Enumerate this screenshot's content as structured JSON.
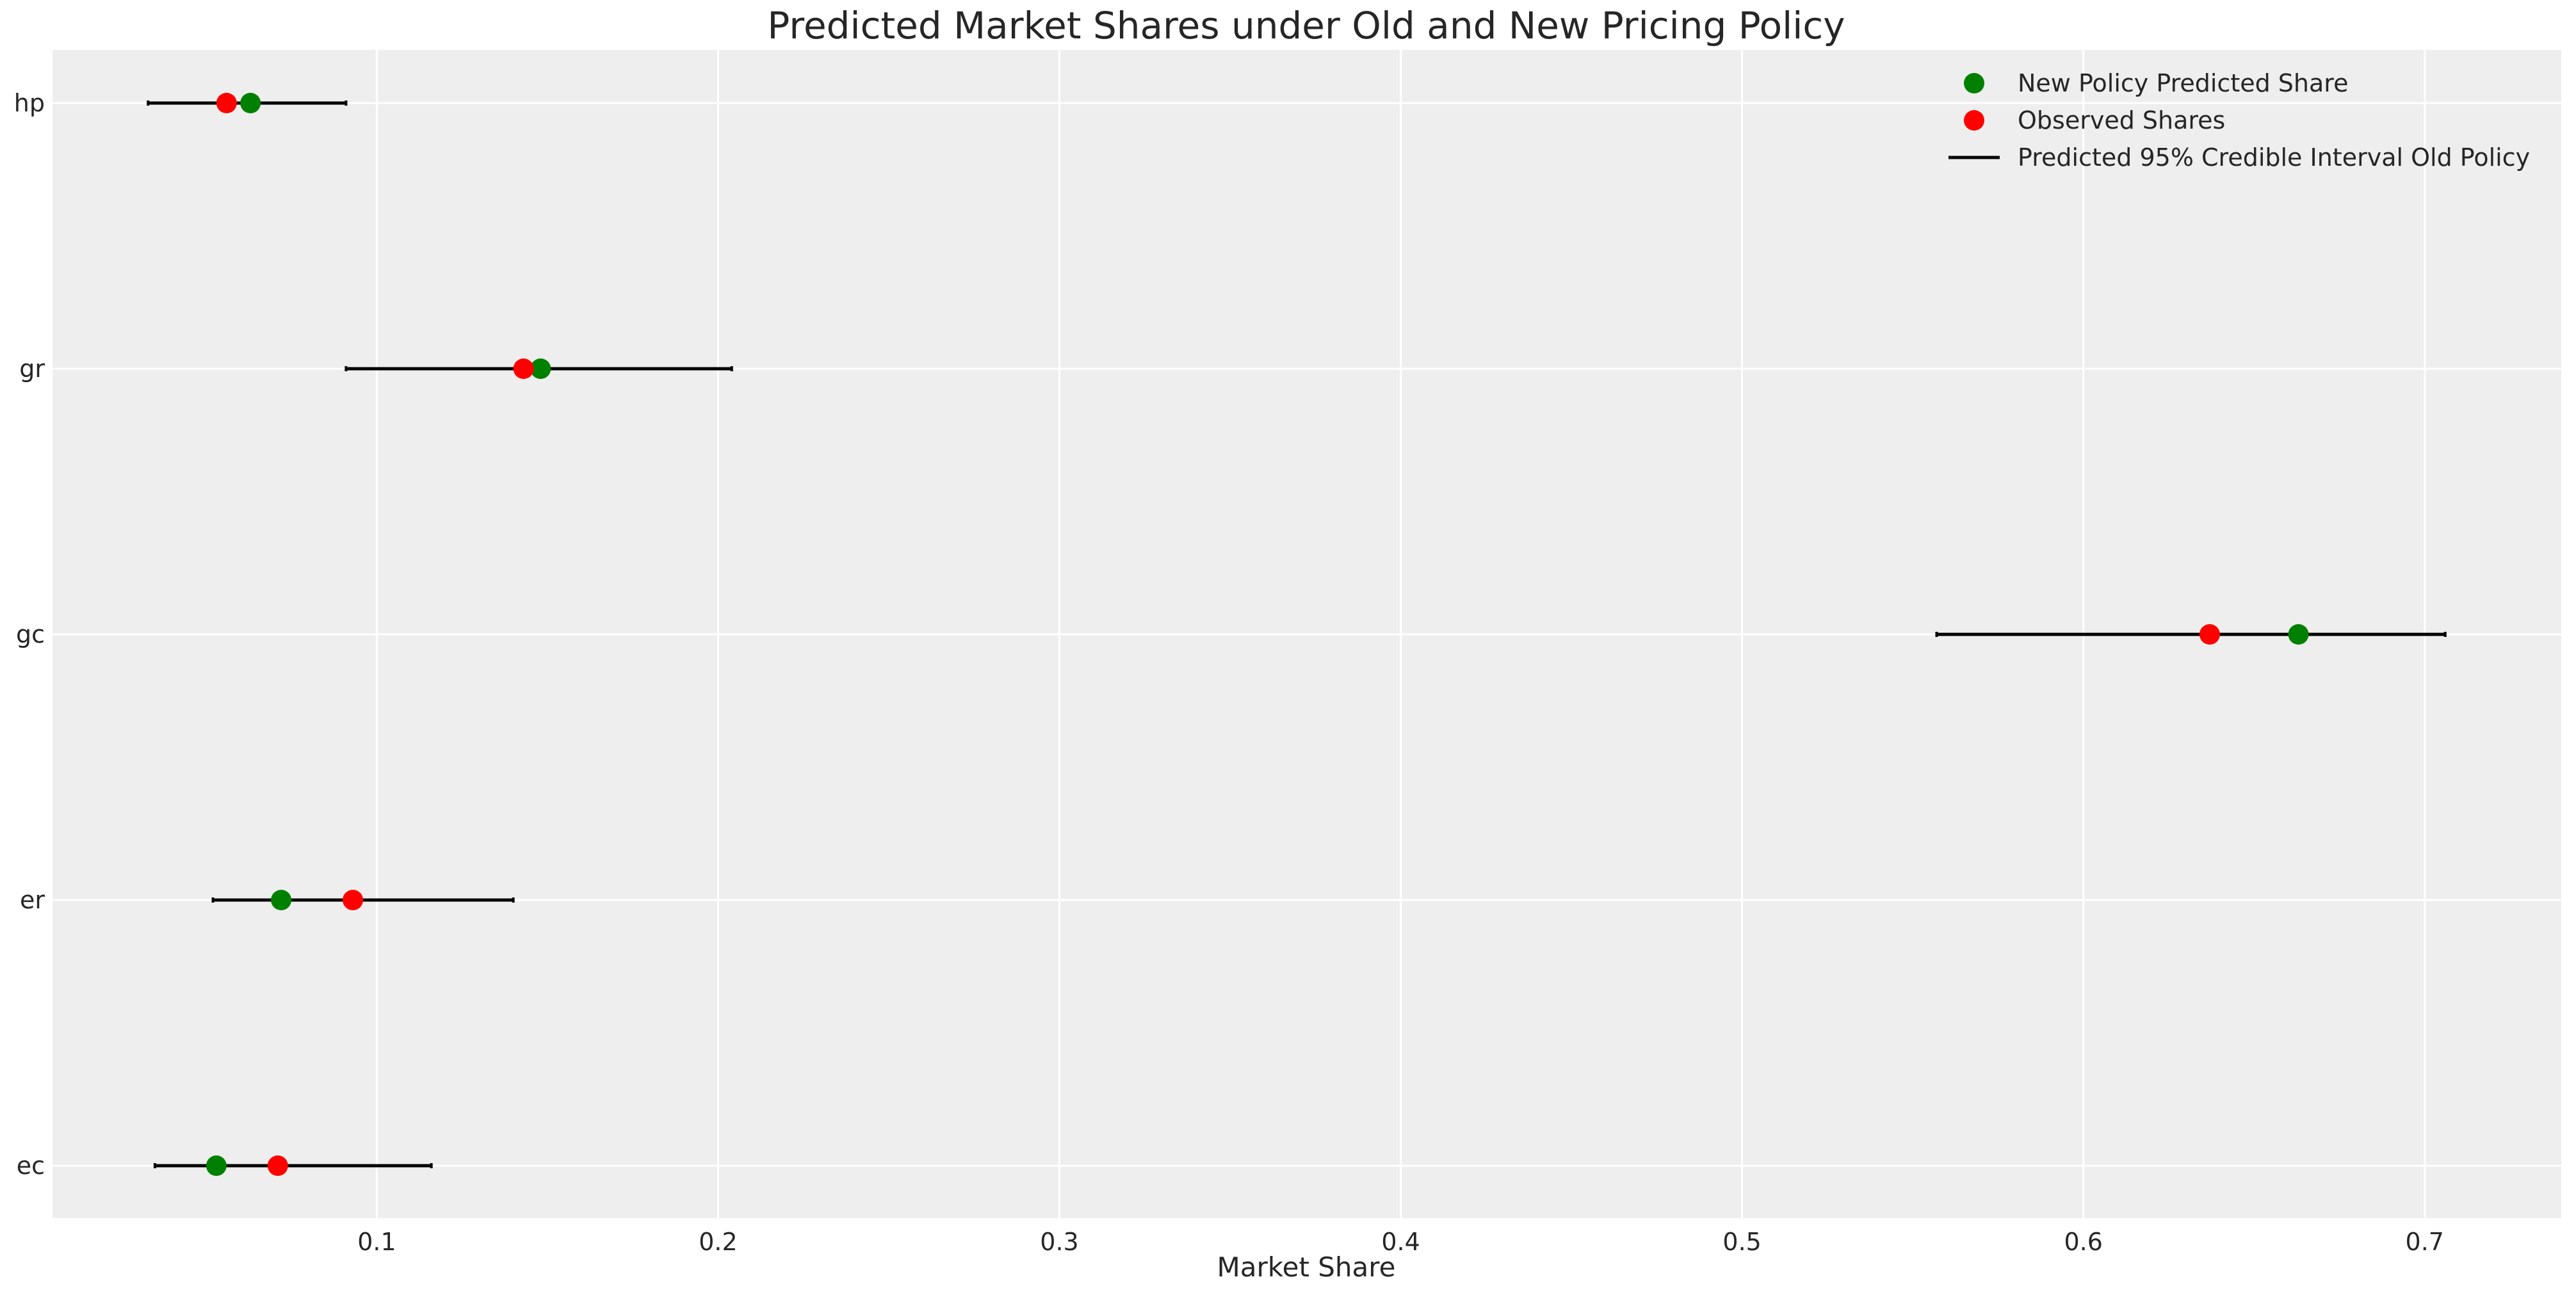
{
  "chart_data": {
    "type": "scatter",
    "title": "Predicted Market Shares under Old and New Pricing Policy",
    "xlabel": "Market Share",
    "ylabel": "",
    "xlim": [
      0.005,
      0.74
    ],
    "xticks": [
      0.1,
      0.2,
      0.3,
      0.4,
      0.5,
      0.6,
      0.7
    ],
    "xtick_labels": [
      "0.1",
      "0.2",
      "0.3",
      "0.4",
      "0.5",
      "0.6",
      "0.7"
    ],
    "categories": [
      "hp",
      "gr",
      "gc",
      "er",
      "ec"
    ],
    "series": [
      {
        "name": "New Policy Predicted Share",
        "kind": "points",
        "color": "#008000",
        "values": [
          0.063,
          0.148,
          0.663,
          0.072,
          0.053
        ]
      },
      {
        "name": "Observed Shares",
        "kind": "points",
        "color": "#ff0000",
        "values": [
          0.056,
          0.143,
          0.637,
          0.093,
          0.071
        ]
      },
      {
        "name": "Predicted 95% Credible Interval Old Policy",
        "kind": "interval",
        "color": "#000000",
        "low": [
          0.033,
          0.091,
          0.557,
          0.052,
          0.035
        ],
        "high": [
          0.091,
          0.204,
          0.706,
          0.14,
          0.116
        ]
      }
    ],
    "grid": true,
    "legend_position": "top-right",
    "background_color": "#eeeeee",
    "grid_color": "#ffffff"
  }
}
